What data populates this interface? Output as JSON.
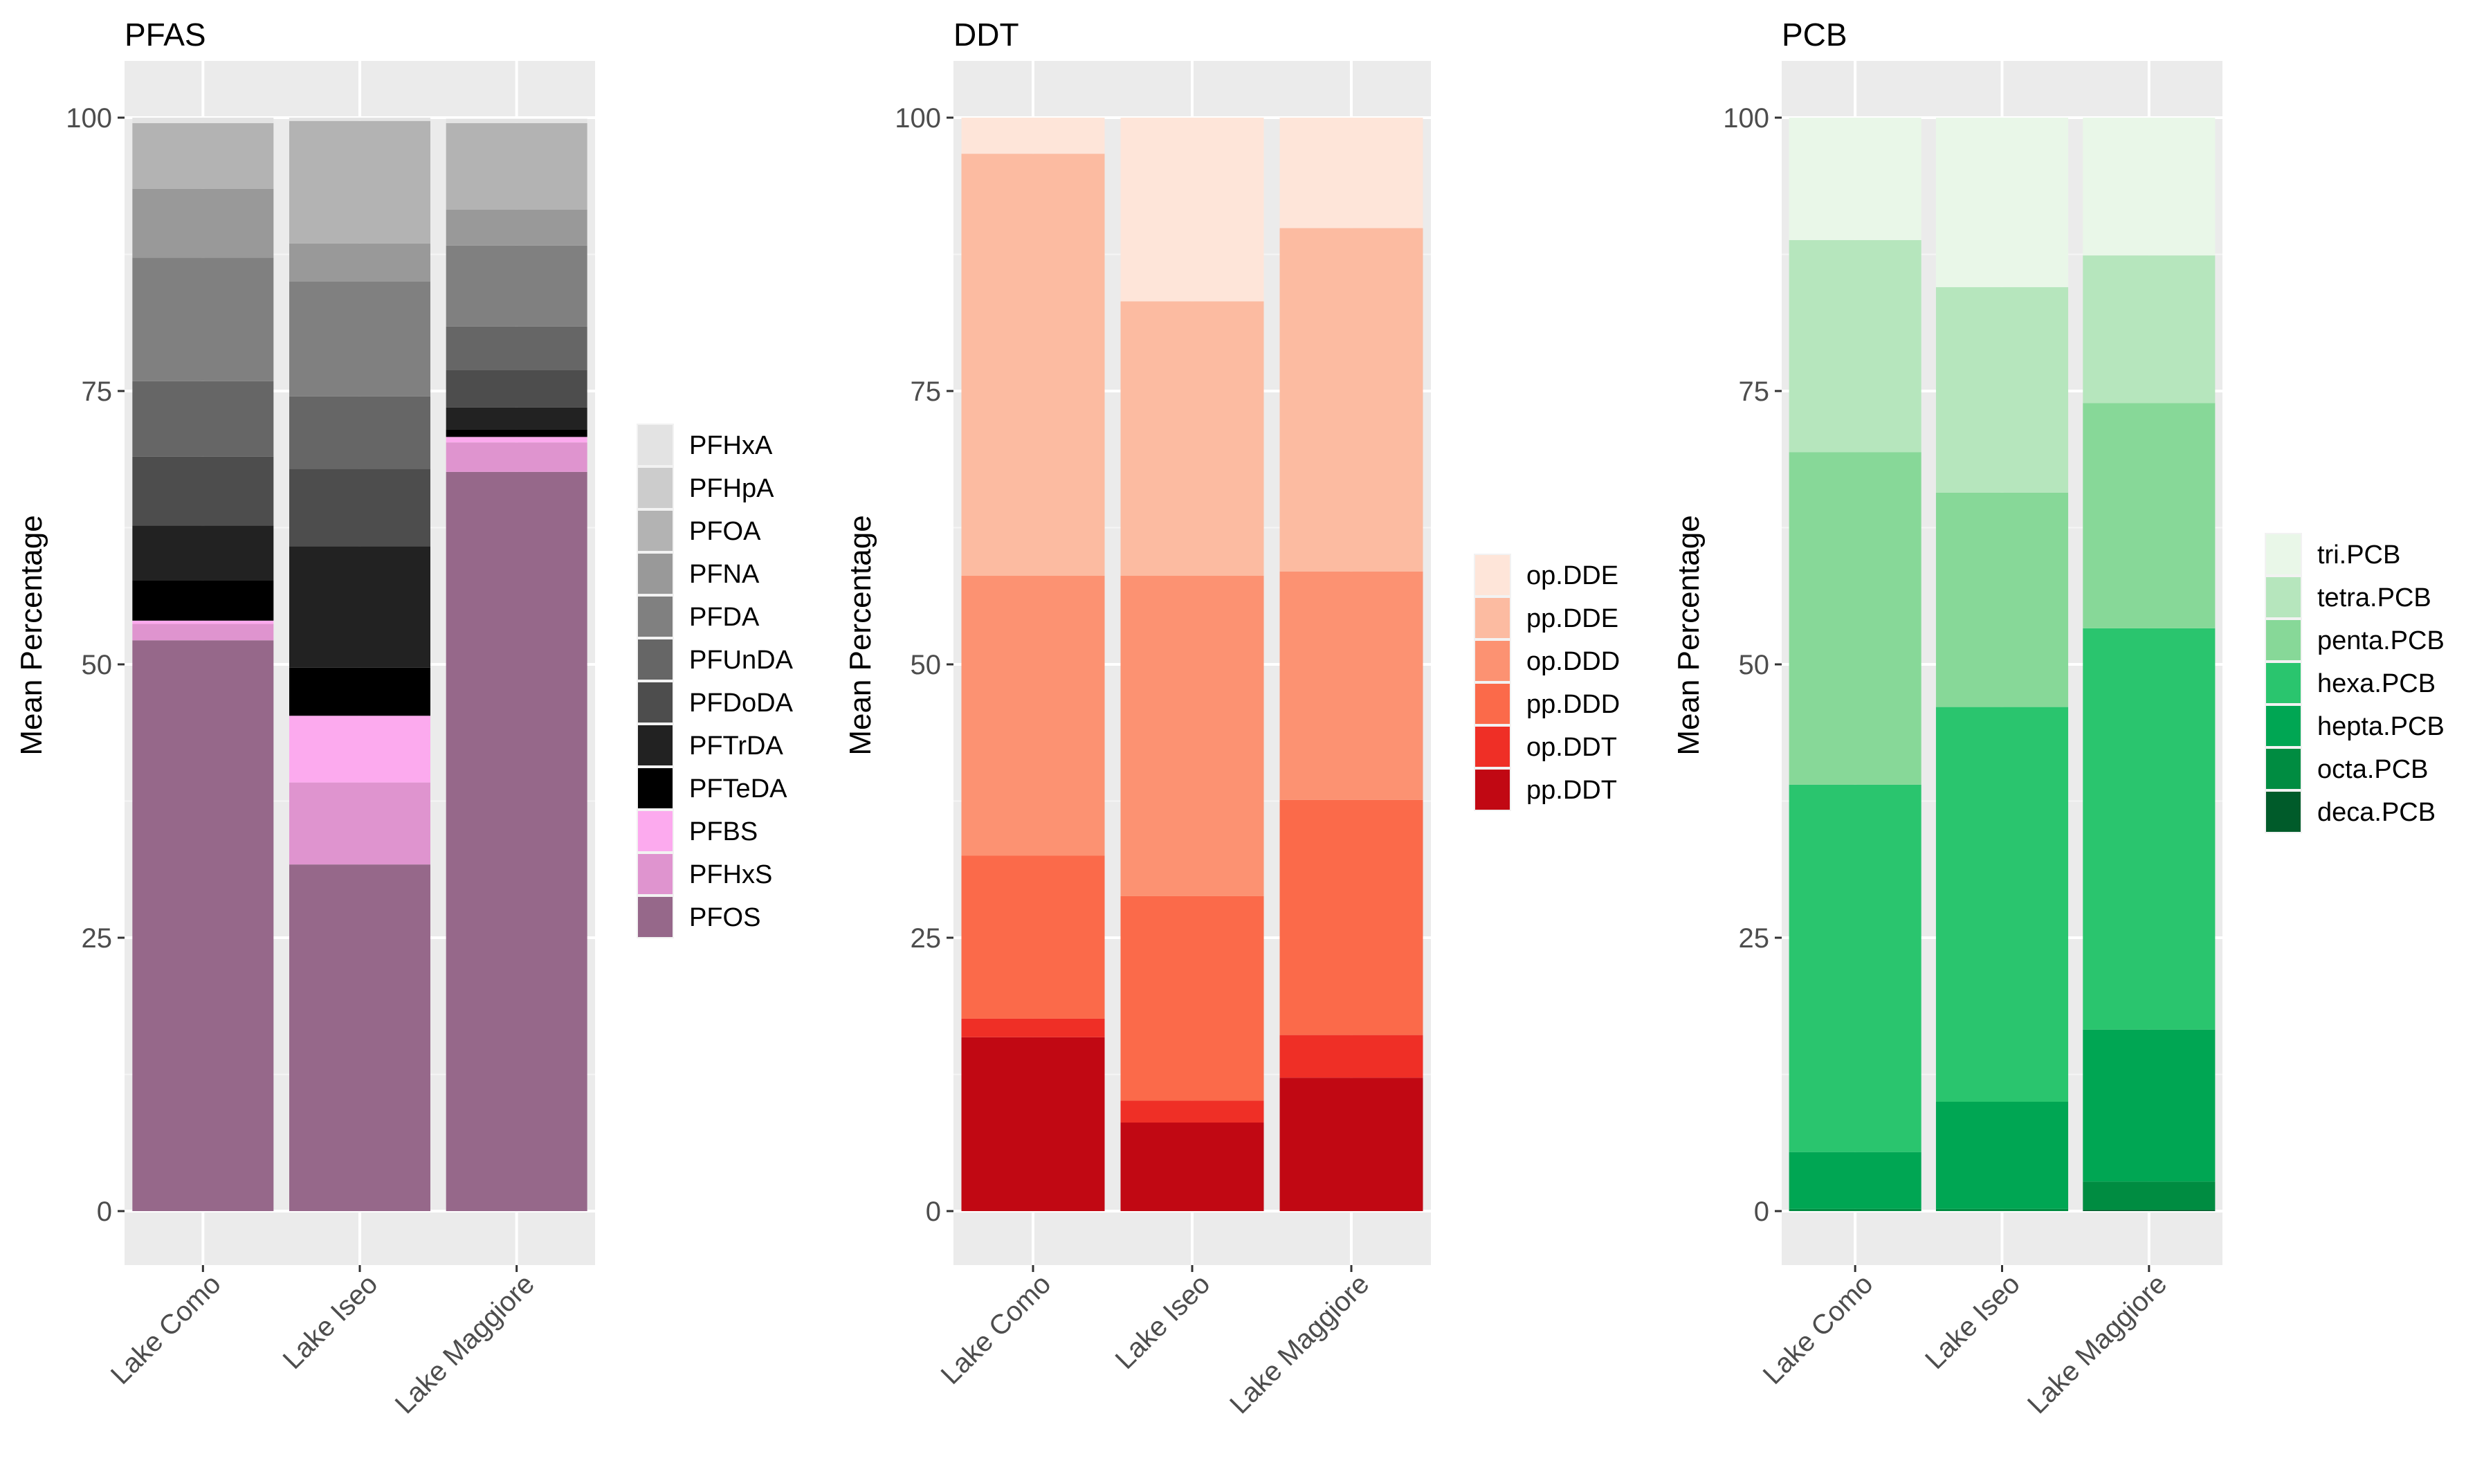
{
  "chart_data": [
    {
      "type": "bar",
      "stacked": true,
      "title": "PFAS",
      "xlabel": "",
      "ylabel": "Mean Percentage",
      "ylim": [
        0,
        100
      ],
      "yticks": [
        0,
        25,
        50,
        75,
        100
      ],
      "categories": [
        "Lake Como",
        "Lake Iseo",
        "Lake Maggiore"
      ],
      "legend_position": "right",
      "series": [
        {
          "name": "PFHxA",
          "color": "#e3e3e3",
          "values": [
            0.5,
            0.3,
            0.4
          ]
        },
        {
          "name": "PFHpA",
          "color": "#cccccc",
          "values": [
            0.0,
            0.0,
            0.0
          ]
        },
        {
          "name": "PFOA",
          "color": "#b3b3b3",
          "values": [
            6.0,
            11.2,
            7.9
          ]
        },
        {
          "name": "PFNA",
          "color": "#999999",
          "values": [
            6.3,
            3.5,
            3.3
          ]
        },
        {
          "name": "PFDA",
          "color": "#808080",
          "values": [
            11.3,
            10.5,
            7.4
          ]
        },
        {
          "name": "PFUnDA",
          "color": "#666666",
          "values": [
            6.9,
            6.6,
            4.0
          ]
        },
        {
          "name": "PFDoDA",
          "color": "#4d4d4d",
          "values": [
            6.3,
            7.1,
            3.4
          ]
        },
        {
          "name": "PFTrDA",
          "color": "#222222",
          "values": [
            5.0,
            11.1,
            2.0
          ]
        },
        {
          "name": "PFTeDA",
          "color": "#000000",
          "values": [
            3.7,
            4.4,
            0.7
          ]
        },
        {
          "name": "PFBS",
          "color": "#fcaaee",
          "values": [
            0.3,
            6.1,
            0.5
          ]
        },
        {
          "name": "PFHxS",
          "color": "#df94cf",
          "values": [
            1.5,
            7.5,
            2.7
          ]
        },
        {
          "name": "PFOS",
          "color": "#96688a",
          "values": [
            52.2,
            31.7,
            67.6
          ]
        }
      ]
    },
    {
      "type": "bar",
      "stacked": true,
      "title": "DDT",
      "xlabel": "",
      "ylabel": "Mean Percentage",
      "ylim": [
        0,
        100
      ],
      "yticks": [
        0,
        25,
        50,
        75,
        100
      ],
      "categories": [
        "Lake Como",
        "Lake Iseo",
        "Lake Maggiore"
      ],
      "legend_position": "right",
      "series": [
        {
          "name": "op.DDE",
          "color": "#fee5d9",
          "values": [
            3.3,
            16.8,
            10.1
          ]
        },
        {
          "name": "pp.DDE",
          "color": "#fcbba1",
          "values": [
            38.6,
            25.1,
            31.4
          ]
        },
        {
          "name": "op.DDD",
          "color": "#fc9272",
          "values": [
            25.6,
            29.3,
            20.9
          ]
        },
        {
          "name": "pp.DDD",
          "color": "#fb6a4a",
          "values": [
            14.9,
            18.7,
            21.5
          ]
        },
        {
          "name": "op.DDT",
          "color": "#ef2f26",
          "values": [
            1.7,
            2.0,
            3.9
          ]
        },
        {
          "name": "pp.DDT",
          "color": "#c10813",
          "values": [
            15.9,
            8.1,
            12.2
          ]
        }
      ]
    },
    {
      "type": "bar",
      "stacked": true,
      "title": "PCB",
      "xlabel": "",
      "ylabel": "Mean Percentage",
      "ylim": [
        0,
        100
      ],
      "yticks": [
        0,
        25,
        50,
        75,
        100
      ],
      "categories": [
        "Lake Como",
        "Lake Iseo",
        "Lake Maggiore"
      ],
      "legend_position": "right",
      "series": [
        {
          "name": "tri.PCB",
          "color": "#e9f7e8",
          "values": [
            11.2,
            15.5,
            12.6
          ]
        },
        {
          "name": "tetra.PCB",
          "color": "#b6e6bd",
          "values": [
            19.4,
            18.8,
            13.5
          ]
        },
        {
          "name": "penta.PCB",
          "color": "#87d898",
          "values": [
            30.4,
            19.6,
            20.6
          ]
        },
        {
          "name": "hexa.PCB",
          "color": "#2ac56e",
          "values": [
            33.6,
            36.1,
            36.7
          ]
        },
        {
          "name": "hepta.PCB",
          "color": "#00a653",
          "values": [
            5.2,
            9.8,
            13.9
          ]
        },
        {
          "name": "octa.PCB",
          "color": "#008c41",
          "values": [
            0.2,
            0.2,
            2.6
          ]
        },
        {
          "name": "deca.PCB",
          "color": "#005b2a",
          "values": [
            0.0,
            0.0,
            0.1
          ]
        }
      ]
    }
  ]
}
